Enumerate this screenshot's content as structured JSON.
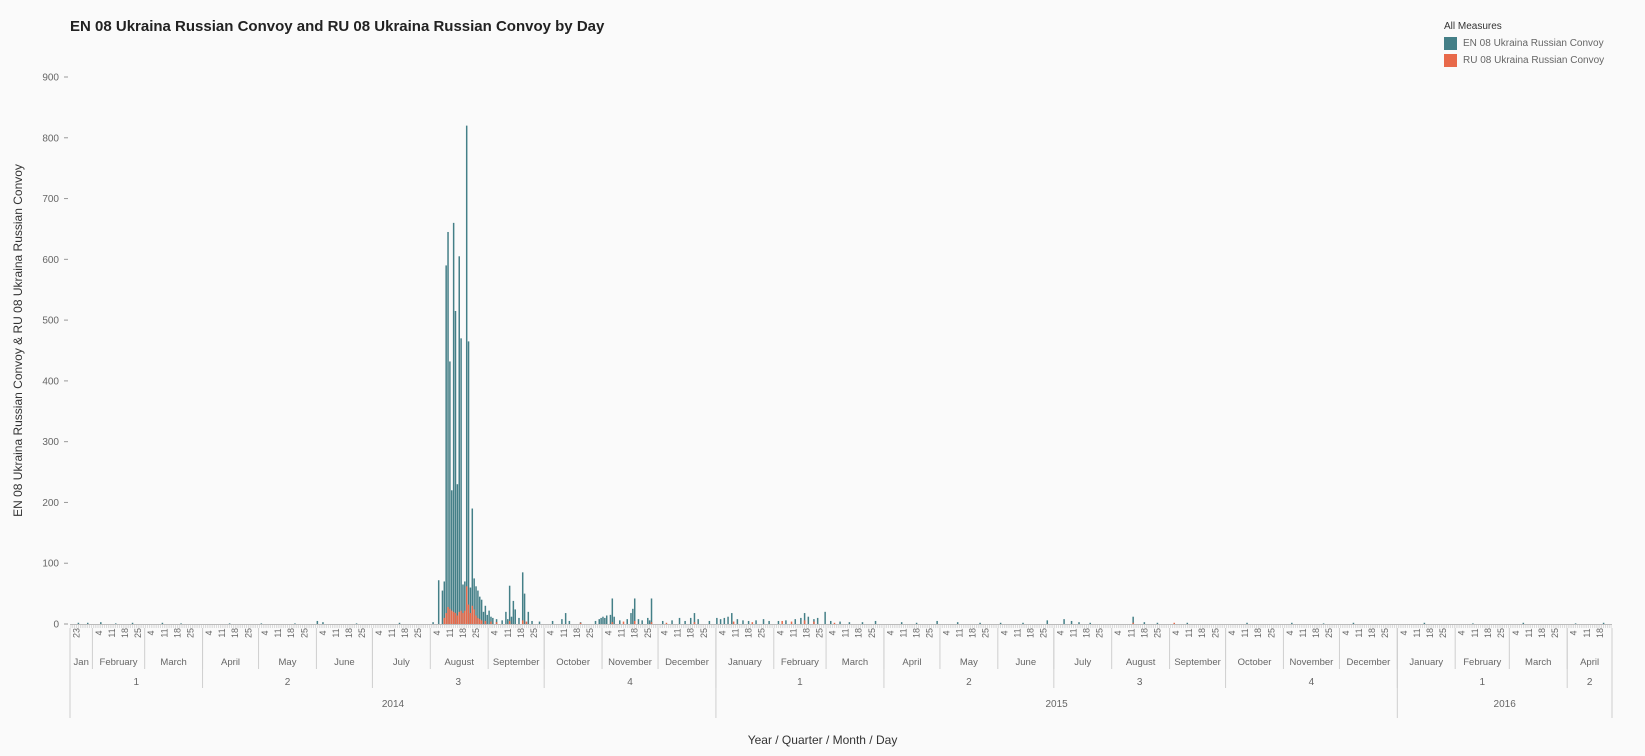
{
  "chart_data": {
    "type": "bar",
    "title": "EN 08 Ukraina Russian Convoy and RU 08 Ukraina Russian Convoy by Day",
    "xlabel": "Year / Quarter / Month / Day",
    "ylabel": "EN 08 Ukraina Russian Convoy & RU 08 Ukraina Russian Convoy",
    "ylim": [
      0,
      900
    ],
    "yticks": [
      0,
      100,
      200,
      300,
      400,
      500,
      600,
      700,
      800,
      900
    ],
    "grid": false,
    "legend": {
      "title": "All Measures",
      "position": "top-right",
      "entries": [
        {
          "name": "EN 08 Ukraina Russian Convoy",
          "color": "#447f87"
        },
        {
          "name": "RU 08 Ukraina Russian Convoy",
          "color": "#e8694a"
        }
      ]
    },
    "x_range": [
      "2014-01-20",
      "2016-04-24"
    ],
    "years": [
      {
        "label": "2014",
        "start": "2014-01-20",
        "end": "2014-12-31"
      },
      {
        "label": "2015",
        "start": "2015-01-01",
        "end": "2015-12-31"
      },
      {
        "label": "2016",
        "start": "2016-01-01",
        "end": "2016-04-24"
      }
    ],
    "quarters": [
      {
        "label": "1",
        "start": "2014-01-20",
        "end": "2014-03-31"
      },
      {
        "label": "2",
        "start": "2014-04-01",
        "end": "2014-06-30"
      },
      {
        "label": "3",
        "start": "2014-07-01",
        "end": "2014-09-30"
      },
      {
        "label": "4",
        "start": "2014-10-01",
        "end": "2014-12-31"
      },
      {
        "label": "1",
        "start": "2015-01-01",
        "end": "2015-03-31"
      },
      {
        "label": "2",
        "start": "2015-04-01",
        "end": "2015-06-30"
      },
      {
        "label": "3",
        "start": "2015-07-01",
        "end": "2015-09-30"
      },
      {
        "label": "4",
        "start": "2015-10-01",
        "end": "2015-12-31"
      },
      {
        "label": "1",
        "start": "2016-01-01",
        "end": "2016-03-31"
      },
      {
        "label": "2",
        "start": "2016-04-01",
        "end": "2016-04-24"
      }
    ],
    "months": [
      {
        "label": "Jan",
        "start": "2014-01-20",
        "end": "2014-01-31",
        "days": [
          "23"
        ]
      },
      {
        "label": "February",
        "start": "2014-02-01",
        "end": "2014-02-28",
        "days": [
          "4",
          "11",
          "18",
          "25"
        ]
      },
      {
        "label": "March",
        "start": "2014-03-01",
        "end": "2014-03-31",
        "days": [
          "4",
          "11",
          "18",
          "25"
        ]
      },
      {
        "label": "April",
        "start": "2014-04-01",
        "end": "2014-04-30",
        "days": [
          "4",
          "11",
          "18",
          "25"
        ]
      },
      {
        "label": "May",
        "start": "2014-05-01",
        "end": "2014-05-31",
        "days": [
          "4",
          "11",
          "18",
          "25"
        ]
      },
      {
        "label": "June",
        "start": "2014-06-01",
        "end": "2014-06-30",
        "days": [
          "4",
          "11",
          "18",
          "25"
        ]
      },
      {
        "label": "July",
        "start": "2014-07-01",
        "end": "2014-07-31",
        "days": [
          "4",
          "11",
          "18",
          "25"
        ]
      },
      {
        "label": "August",
        "start": "2014-08-01",
        "end": "2014-08-31",
        "days": [
          "4",
          "11",
          "18",
          "25"
        ]
      },
      {
        "label": "September",
        "start": "2014-09-01",
        "end": "2014-09-30",
        "days": [
          "4",
          "11",
          "18",
          "25"
        ]
      },
      {
        "label": "October",
        "start": "2014-10-01",
        "end": "2014-10-31",
        "days": [
          "4",
          "11",
          "18",
          "25"
        ]
      },
      {
        "label": "November",
        "start": "2014-11-01",
        "end": "2014-11-30",
        "days": [
          "4",
          "11",
          "18",
          "25"
        ]
      },
      {
        "label": "December",
        "start": "2014-12-01",
        "end": "2014-12-31",
        "days": [
          "4",
          "11",
          "18",
          "25"
        ]
      },
      {
        "label": "January",
        "start": "2015-01-01",
        "end": "2015-01-31",
        "days": [
          "4",
          "11",
          "18",
          "25"
        ]
      },
      {
        "label": "February",
        "start": "2015-02-01",
        "end": "2015-02-28",
        "days": [
          "4",
          "11",
          "18",
          "25"
        ]
      },
      {
        "label": "March",
        "start": "2015-03-01",
        "end": "2015-03-31",
        "days": [
          "4",
          "11",
          "18",
          "25"
        ]
      },
      {
        "label": "April",
        "start": "2015-04-01",
        "end": "2015-04-30",
        "days": [
          "4",
          "11",
          "18",
          "25"
        ]
      },
      {
        "label": "May",
        "start": "2015-05-01",
        "end": "2015-05-31",
        "days": [
          "4",
          "11",
          "18",
          "25"
        ]
      },
      {
        "label": "June",
        "start": "2015-06-01",
        "end": "2015-06-30",
        "days": [
          "4",
          "11",
          "18",
          "25"
        ]
      },
      {
        "label": "July",
        "start": "2015-07-01",
        "end": "2015-07-31",
        "days": [
          "4",
          "11",
          "18",
          "25"
        ]
      },
      {
        "label": "August",
        "start": "2015-08-01",
        "end": "2015-08-31",
        "days": [
          "4",
          "11",
          "18",
          "25"
        ]
      },
      {
        "label": "September",
        "start": "2015-09-01",
        "end": "2015-09-30",
        "days": [
          "4",
          "11",
          "18",
          "25"
        ]
      },
      {
        "label": "October",
        "start": "2015-10-01",
        "end": "2015-10-31",
        "days": [
          "4",
          "11",
          "18",
          "25"
        ]
      },
      {
        "label": "November",
        "start": "2015-11-01",
        "end": "2015-11-30",
        "days": [
          "4",
          "11",
          "18",
          "25"
        ]
      },
      {
        "label": "December",
        "start": "2015-12-01",
        "end": "2015-12-31",
        "days": [
          "4",
          "11",
          "18",
          "25"
        ]
      },
      {
        "label": "January",
        "start": "2016-01-01",
        "end": "2016-01-31",
        "days": [
          "4",
          "11",
          "18",
          "25"
        ]
      },
      {
        "label": "February",
        "start": "2016-02-01",
        "end": "2016-02-29",
        "days": [
          "4",
          "11",
          "18",
          "25"
        ]
      },
      {
        "label": "March",
        "start": "2016-03-01",
        "end": "2016-03-31",
        "days": [
          "4",
          "11",
          "18",
          "25"
        ]
      },
      {
        "label": "April",
        "start": "2016-04-01",
        "end": "2016-04-24",
        "days": [
          "4",
          "11",
          "18"
        ]
      }
    ],
    "series": [
      {
        "name": "EN 08 Ukraina Russian Convoy",
        "color": "#447f87",
        "points": [
          [
            "2014-01-24",
            2
          ],
          [
            "2014-01-29",
            2
          ],
          [
            "2014-02-05",
            3
          ],
          [
            "2014-02-13",
            1
          ],
          [
            "2014-02-22",
            2
          ],
          [
            "2014-03-10",
            2
          ],
          [
            "2014-03-20",
            1
          ],
          [
            "2014-04-15",
            1
          ],
          [
            "2014-05-02",
            1
          ],
          [
            "2014-05-20",
            1
          ],
          [
            "2014-06-01",
            5
          ],
          [
            "2014-06-04",
            3
          ],
          [
            "2014-06-22",
            1
          ],
          [
            "2014-07-15",
            2
          ],
          [
            "2014-08-02",
            3
          ],
          [
            "2014-08-05",
            72
          ],
          [
            "2014-08-07",
            55
          ],
          [
            "2014-08-08",
            70
          ],
          [
            "2014-08-09",
            590
          ],
          [
            "2014-08-10",
            645
          ],
          [
            "2014-08-11",
            432
          ],
          [
            "2014-08-12",
            220
          ],
          [
            "2014-08-13",
            660
          ],
          [
            "2014-08-14",
            515
          ],
          [
            "2014-08-15",
            230
          ],
          [
            "2014-08-16",
            605
          ],
          [
            "2014-08-17",
            470
          ],
          [
            "2014-08-18",
            65
          ],
          [
            "2014-08-19",
            70
          ],
          [
            "2014-08-20",
            820
          ],
          [
            "2014-08-21",
            465
          ],
          [
            "2014-08-22",
            60
          ],
          [
            "2014-08-23",
            190
          ],
          [
            "2014-08-24",
            75
          ],
          [
            "2014-08-25",
            62
          ],
          [
            "2014-08-26",
            55
          ],
          [
            "2014-08-27",
            45
          ],
          [
            "2014-08-28",
            40
          ],
          [
            "2014-08-29",
            20
          ],
          [
            "2014-08-30",
            30
          ],
          [
            "2014-08-31",
            15
          ],
          [
            "2014-09-01",
            22
          ],
          [
            "2014-09-02",
            12
          ],
          [
            "2014-09-03",
            10
          ],
          [
            "2014-09-05",
            8
          ],
          [
            "2014-09-08",
            6
          ],
          [
            "2014-09-10",
            20
          ],
          [
            "2014-09-11",
            8
          ],
          [
            "2014-09-12",
            63
          ],
          [
            "2014-09-13",
            12
          ],
          [
            "2014-09-14",
            38
          ],
          [
            "2014-09-15",
            24
          ],
          [
            "2014-09-17",
            10
          ],
          [
            "2014-09-19",
            85
          ],
          [
            "2014-09-20",
            50
          ],
          [
            "2014-09-22",
            20
          ],
          [
            "2014-09-24",
            5
          ],
          [
            "2014-09-28",
            4
          ],
          [
            "2014-10-05",
            5
          ],
          [
            "2014-10-10",
            8
          ],
          [
            "2014-10-12",
            18
          ],
          [
            "2014-10-14",
            5
          ],
          [
            "2014-10-20",
            3
          ],
          [
            "2014-10-28",
            5
          ],
          [
            "2014-10-30",
            8
          ],
          [
            "2014-10-31",
            10
          ],
          [
            "2014-11-01",
            12
          ],
          [
            "2014-11-02",
            10
          ],
          [
            "2014-11-03",
            14
          ],
          [
            "2014-11-05",
            15
          ],
          [
            "2014-11-06",
            42
          ],
          [
            "2014-11-07",
            12
          ],
          [
            "2014-11-10",
            6
          ],
          [
            "2014-11-14",
            8
          ],
          [
            "2014-11-16",
            18
          ],
          [
            "2014-11-17",
            25
          ],
          [
            "2014-11-18",
            42
          ],
          [
            "2014-11-20",
            8
          ],
          [
            "2014-11-22",
            6
          ],
          [
            "2014-11-25",
            10
          ],
          [
            "2014-11-26",
            6
          ],
          [
            "2014-11-27",
            42
          ],
          [
            "2014-12-03",
            5
          ],
          [
            "2014-12-08",
            6
          ],
          [
            "2014-12-12",
            10
          ],
          [
            "2014-12-15",
            5
          ],
          [
            "2014-12-18",
            10
          ],
          [
            "2014-12-20",
            18
          ],
          [
            "2014-12-22",
            8
          ],
          [
            "2014-12-28",
            5
          ],
          [
            "2015-01-01",
            10
          ],
          [
            "2015-01-03",
            8
          ],
          [
            "2015-01-05",
            10
          ],
          [
            "2015-01-07",
            12
          ],
          [
            "2015-01-09",
            18
          ],
          [
            "2015-01-12",
            8
          ],
          [
            "2015-01-15",
            6
          ],
          [
            "2015-01-18",
            5
          ],
          [
            "2015-01-22",
            6
          ],
          [
            "2015-01-26",
            8
          ],
          [
            "2015-01-29",
            5
          ],
          [
            "2015-02-03",
            5
          ],
          [
            "2015-02-07",
            6
          ],
          [
            "2015-02-12",
            8
          ],
          [
            "2015-02-15",
            10
          ],
          [
            "2015-02-17",
            18
          ],
          [
            "2015-02-19",
            12
          ],
          [
            "2015-02-22",
            8
          ],
          [
            "2015-02-24",
            10
          ],
          [
            "2015-02-28",
            20
          ],
          [
            "2015-03-03",
            5
          ],
          [
            "2015-03-08",
            4
          ],
          [
            "2015-03-13",
            3
          ],
          [
            "2015-03-20",
            3
          ],
          [
            "2015-03-27",
            5
          ],
          [
            "2015-04-10",
            3
          ],
          [
            "2015-04-18",
            2
          ],
          [
            "2015-04-29",
            5
          ],
          [
            "2015-05-10",
            3
          ],
          [
            "2015-05-22",
            2
          ],
          [
            "2015-06-02",
            2
          ],
          [
            "2015-06-14",
            2
          ],
          [
            "2015-06-27",
            6
          ],
          [
            "2015-07-06",
            8
          ],
          [
            "2015-07-10",
            5
          ],
          [
            "2015-07-14",
            3
          ],
          [
            "2015-07-20",
            2
          ],
          [
            "2015-08-12",
            12
          ],
          [
            "2015-08-18",
            3
          ],
          [
            "2015-08-25",
            2
          ],
          [
            "2015-09-10",
            2
          ],
          [
            "2015-10-12",
            2
          ],
          [
            "2015-11-05",
            2
          ],
          [
            "2015-11-22",
            1
          ],
          [
            "2015-12-08",
            2
          ],
          [
            "2016-01-15",
            2
          ],
          [
            "2016-02-10",
            1
          ],
          [
            "2016-03-08",
            2
          ],
          [
            "2016-04-05",
            1
          ],
          [
            "2016-04-20",
            2
          ]
        ]
      },
      {
        "name": "RU 08 Ukraina Russian Convoy",
        "color": "#e8694a",
        "points": [
          [
            "2014-08-08",
            10
          ],
          [
            "2014-08-09",
            18
          ],
          [
            "2014-08-10",
            28
          ],
          [
            "2014-08-11",
            25
          ],
          [
            "2014-08-12",
            22
          ],
          [
            "2014-08-13",
            20
          ],
          [
            "2014-08-14",
            18
          ],
          [
            "2014-08-15",
            14
          ],
          [
            "2014-08-16",
            20
          ],
          [
            "2014-08-17",
            22
          ],
          [
            "2014-08-18",
            18
          ],
          [
            "2014-08-19",
            22
          ],
          [
            "2014-08-20",
            62
          ],
          [
            "2014-08-21",
            32
          ],
          [
            "2014-08-22",
            18
          ],
          [
            "2014-08-23",
            30
          ],
          [
            "2014-08-24",
            24
          ],
          [
            "2014-08-25",
            14
          ],
          [
            "2014-08-26",
            10
          ],
          [
            "2014-08-27",
            8
          ],
          [
            "2014-08-28",
            6
          ],
          [
            "2014-08-30",
            5
          ],
          [
            "2014-09-02",
            4
          ],
          [
            "2014-09-05",
            3
          ],
          [
            "2014-09-12",
            5
          ],
          [
            "2014-09-19",
            6
          ],
          [
            "2014-09-21",
            4
          ],
          [
            "2014-10-20",
            2
          ],
          [
            "2014-11-06",
            3
          ],
          [
            "2014-11-12",
            4
          ],
          [
            "2014-11-18",
            5
          ],
          [
            "2014-11-27",
            3
          ],
          [
            "2014-12-05",
            2
          ],
          [
            "2014-12-20",
            3
          ],
          [
            "2015-01-10",
            4
          ],
          [
            "2015-01-20",
            3
          ],
          [
            "2015-02-05",
            5
          ],
          [
            "2015-02-10",
            4
          ],
          [
            "2015-02-17",
            6
          ],
          [
            "2015-02-22",
            4
          ],
          [
            "2015-03-05",
            2
          ],
          [
            "2015-08-12",
            2
          ],
          [
            "2015-09-03",
            2
          ]
        ]
      }
    ]
  }
}
